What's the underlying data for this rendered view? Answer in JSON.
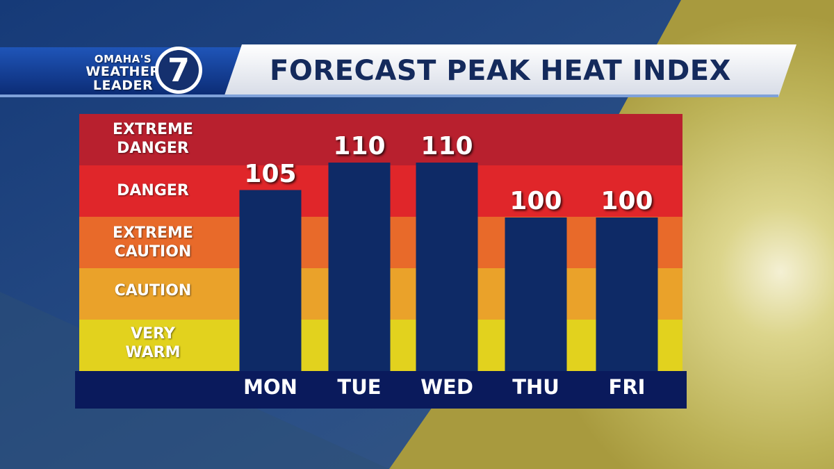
{
  "header": {
    "logo_line1": "OMAHA'S",
    "logo_line2": "WEATHER",
    "logo_line3": "LEADER",
    "logo_number": "7",
    "title": "FORECAST PEAK HEAT INDEX"
  },
  "colors": {
    "navy": "#0a1a5c",
    "bar": "#0e2a66",
    "extreme_danger": "#b8202e",
    "danger": "#e0262a",
    "extreme_caution": "#e86a2a",
    "caution": "#eaa22a",
    "very_warm": "#e2d21e",
    "title_text": "#142a5c"
  },
  "chart_data": {
    "type": "bar",
    "title": "FORECAST PEAK HEAT INDEX",
    "categories": [
      "MON",
      "TUE",
      "WED",
      "THU",
      "FRI"
    ],
    "values": [
      105,
      110,
      110,
      100,
      100
    ],
    "value_labels": [
      "105",
      "110",
      "110",
      "100",
      "100"
    ],
    "zones": [
      {
        "label": "EXTREME\nDANGER",
        "from": 111,
        "to": 115
      },
      {
        "label": "DANGER",
        "from": 101,
        "to": 110
      },
      {
        "label": "EXTREME\nCAUTION",
        "from": 91,
        "to": 100
      },
      {
        "label": "CAUTION",
        "from": 81,
        "to": 90
      },
      {
        "label": "VERY\nWARM",
        "from": 71,
        "to": 80
      }
    ],
    "ylim": [
      71,
      115
    ]
  }
}
